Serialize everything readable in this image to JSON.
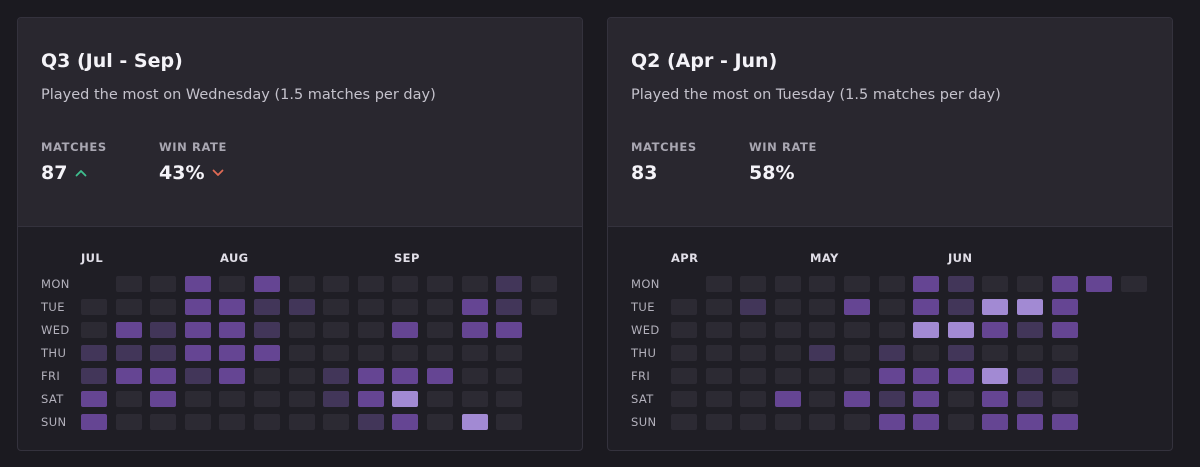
{
  "cards": [
    {
      "title": "Q3 (Jul - Sep)",
      "subtitle": "Played the most on Wednesday (1.5 matches per day)",
      "matches_label": "MATCHES",
      "matches_value": "87",
      "matches_trend": "up",
      "winrate_label": "WIN RATE",
      "winrate_value": "43%",
      "winrate_trend": "down",
      "months": [
        "JUL",
        "AUG",
        "SEP"
      ],
      "days": [
        "MON",
        "TUE",
        "WED",
        "THU",
        "FRI",
        "SAT",
        "SUN"
      ],
      "heatmap_levels": [
        [
          null,
          0,
          0,
          2,
          0,
          2,
          0,
          0,
          0,
          0,
          0,
          0,
          1,
          0
        ],
        [
          0,
          0,
          0,
          2,
          2,
          1,
          1,
          0,
          0,
          0,
          0,
          2,
          1,
          0
        ],
        [
          0,
          2,
          1,
          2,
          2,
          1,
          0,
          0,
          0,
          2,
          0,
          2,
          2,
          null
        ],
        [
          1,
          1,
          1,
          2,
          2,
          2,
          0,
          0,
          0,
          0,
          0,
          0,
          0,
          null
        ],
        [
          1,
          2,
          2,
          1,
          2,
          0,
          0,
          1,
          2,
          2,
          2,
          0,
          0,
          null
        ],
        [
          2,
          0,
          2,
          0,
          0,
          0,
          0,
          1,
          2,
          3,
          0,
          0,
          0,
          null
        ],
        [
          2,
          0,
          0,
          0,
          0,
          0,
          0,
          0,
          1,
          2,
          0,
          3,
          0,
          null
        ]
      ]
    },
    {
      "title": "Q2 (Apr - Jun)",
      "subtitle": "Played the most on Tuesday (1.5 matches per day)",
      "matches_label": "MATCHES",
      "matches_value": "83",
      "matches_trend": "none",
      "winrate_label": "WIN RATE",
      "winrate_value": "58%",
      "winrate_trend": "none",
      "months": [
        "APR",
        "MAY",
        "JUN"
      ],
      "days": [
        "MON",
        "TUE",
        "WED",
        "THU",
        "FRI",
        "SAT",
        "SUN"
      ],
      "heatmap_levels": [
        [
          null,
          0,
          0,
          0,
          0,
          0,
          0,
          2,
          1,
          0,
          0,
          2,
          2,
          0
        ],
        [
          0,
          0,
          1,
          0,
          0,
          2,
          0,
          2,
          1,
          3,
          3,
          2,
          null,
          null
        ],
        [
          0,
          0,
          0,
          0,
          0,
          0,
          0,
          3,
          3,
          2,
          1,
          2,
          null,
          null
        ],
        [
          0,
          0,
          0,
          0,
          1,
          0,
          1,
          0,
          1,
          0,
          0,
          0,
          null,
          null
        ],
        [
          0,
          0,
          0,
          0,
          0,
          0,
          2,
          2,
          2,
          3,
          1,
          1,
          null,
          null
        ],
        [
          0,
          0,
          0,
          2,
          0,
          2,
          1,
          2,
          0,
          2,
          1,
          0,
          null,
          null
        ],
        [
          0,
          0,
          0,
          0,
          0,
          0,
          2,
          2,
          0,
          2,
          2,
          2,
          null,
          null
        ]
      ]
    }
  ],
  "colors": {
    "background": "#1b1a20",
    "card_top": "#29272f",
    "card_bottom": "#1f1e25",
    "trend_up": "#3fbf8f",
    "trend_down": "#e06a55",
    "level0": "#2c2a33",
    "level1": "#423659",
    "level2": "#654593",
    "level3": "#a28ad3"
  },
  "icons": {
    "trend_up": "chevron-up-icon",
    "trend_down": "chevron-down-icon"
  }
}
